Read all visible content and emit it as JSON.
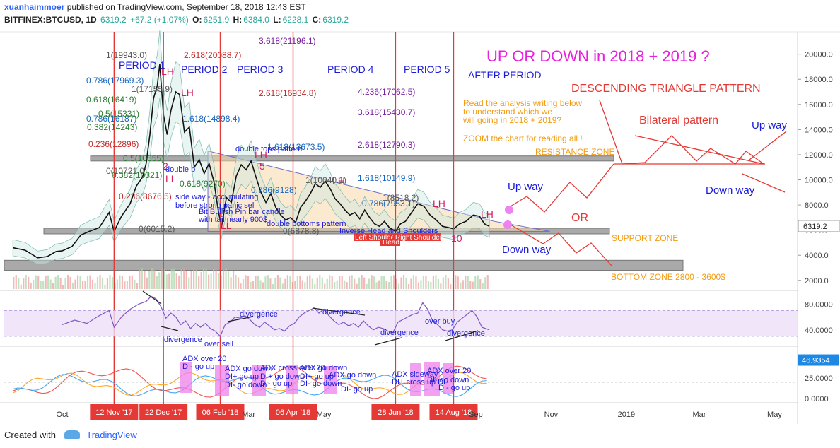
{
  "header": {
    "author": "xuanhaimmoer",
    "published": "published on TradingView.com, September 18, 2018 12:43 EST",
    "symbol": "BITFINEX:BTCUSD, 1D",
    "last": "6319.2",
    "change": "+67.2 (+1.07%)",
    "o_label": "O:",
    "o_value": "6251.9",
    "h_label": "H:",
    "h_value": "6384.0",
    "l_label": "L:",
    "l_value": "6228.1",
    "c_label": "C:",
    "c_value": "6319.2"
  },
  "footer": {
    "created_with": "Created with",
    "brand": "TradingView"
  },
  "chart_data": {
    "type": "line",
    "title": "UP OR DOWN in 2018 + 2019 ?",
    "price_axis": {
      "min": 1200,
      "max": 21500,
      "ticks": [
        2000.0,
        4000.0,
        6000.0,
        8000.0,
        10000.0,
        12000.0,
        14000.0,
        16000.0,
        18000.0,
        20000.0
      ],
      "last_price": "6319.2"
    },
    "time_axis": {
      "labels": [
        {
          "text": "Oct",
          "day": 0
        },
        {
          "text": "Mar",
          "day": 151
        },
        {
          "text": "May",
          "day": 212
        },
        {
          "text": "Sep",
          "day": 335
        },
        {
          "text": "Nov",
          "day": 396
        },
        {
          "text": "2019",
          "day": 457
        },
        {
          "text": "Mar",
          "day": 516
        },
        {
          "text": "May",
          "day": 577
        }
      ],
      "markers": [
        {
          "text": "12 Nov '17",
          "day": 42
        },
        {
          "text": "22 Dec '17",
          "day": 82
        },
        {
          "text": "06 Feb '18",
          "day": 128
        },
        {
          "text": "06 Apr '18",
          "day": 187
        },
        {
          "text": "28 Jun '18",
          "day": 270
        },
        {
          "text": "14 Aug '18",
          "day": 317
        }
      ]
    },
    "price_series": {
      "name": "BTCUSD",
      "points": [
        [
          -40,
          4600
        ],
        [
          -30,
          4400
        ],
        [
          -20,
          3800
        ],
        [
          -12,
          3900
        ],
        [
          -5,
          4300
        ],
        [
          0,
          4350
        ],
        [
          8,
          4700
        ],
        [
          15,
          5600
        ],
        [
          22,
          5900
        ],
        [
          30,
          6200
        ],
        [
          38,
          7400
        ],
        [
          42,
          5900
        ],
        [
          48,
          7100
        ],
        [
          55,
          8100
        ],
        [
          60,
          9500
        ],
        [
          65,
          10200
        ],
        [
          68,
          11300
        ],
        [
          71,
          13600
        ],
        [
          74,
          16500
        ],
        [
          77,
          17500
        ],
        [
          79,
          19200
        ],
        [
          82,
          15200
        ],
        [
          85,
          13600
        ],
        [
          88,
          15500
        ],
        [
          92,
          17000
        ],
        [
          95,
          16800
        ],
        [
          99,
          13800
        ],
        [
          103,
          14200
        ],
        [
          107,
          11000
        ],
        [
          111,
          11600
        ],
        [
          115,
          10500
        ],
        [
          119,
          11300
        ],
        [
          123,
          9800
        ],
        [
          126,
          7800
        ],
        [
          129,
          6200
        ],
        [
          133,
          8600
        ],
        [
          137,
          8200
        ],
        [
          141,
          10300
        ],
        [
          145,
          11200
        ],
        [
          149,
          10800
        ],
        [
          153,
          11500
        ],
        [
          157,
          10200
        ],
        [
          161,
          9000
        ],
        [
          165,
          8200
        ],
        [
          169,
          8900
        ],
        [
          173,
          7800
        ],
        [
          177,
          7200
        ],
        [
          181,
          6800
        ],
        [
          185,
          7000
        ],
        [
          189,
          6600
        ],
        [
          193,
          7800
        ],
        [
          197,
          8300
        ],
        [
          201,
          8900
        ],
        [
          205,
          9700
        ],
        [
          209,
          9400
        ],
        [
          213,
          9900
        ],
        [
          217,
          9300
        ],
        [
          221,
          8500
        ],
        [
          225,
          8100
        ],
        [
          229,
          7600
        ],
        [
          233,
          7200
        ],
        [
          237,
          7400
        ],
        [
          241,
          6900
        ],
        [
          245,
          7600
        ],
        [
          249,
          7000
        ],
        [
          253,
          6500
        ],
        [
          257,
          6300
        ],
        [
          261,
          6700
        ],
        [
          265,
          6200
        ],
        [
          270,
          5900
        ],
        [
          274,
          6500
        ],
        [
          278,
          6700
        ],
        [
          283,
          7400
        ],
        [
          288,
          8100
        ],
        [
          293,
          7900
        ],
        [
          298,
          7200
        ],
        [
          303,
          6800
        ],
        [
          308,
          6300
        ],
        [
          313,
          6200
        ],
        [
          317,
          6100
        ],
        [
          322,
          6500
        ],
        [
          327,
          6700
        ],
        [
          333,
          7200
        ],
        [
          338,
          7100
        ],
        [
          342,
          6500
        ],
        [
          346,
          6300
        ]
      ]
    },
    "annotations": {
      "title_text": "UP OR DOWN in 2018 + 2019 ?",
      "after_period": "AFTER PERIOD",
      "periods": [
        "PERIOD 1",
        "PERIOD 2",
        "PERIOD 3",
        "PERIOD 4",
        "PERIOD 5"
      ],
      "pattern": "DESCENDING TRIANGLE PATTERN",
      "bilateral": "Bilateral pattern",
      "note_lines": [
        "Read the analysis writing below",
        "to understand which we",
        "will going in 2018 + 2019?",
        "ZOOM the chart for reading all !"
      ],
      "resistance": "RESISTANCE ZONE",
      "support": "SUPPORT ZONE",
      "bottom": "BOTTOM ZONE 2800 - 3600$",
      "up_way": "Up way",
      "down_way": "Down way",
      "or": "OR",
      "up_way_right": "Up way",
      "down_way_right": "Down way",
      "lh": "LH",
      "ll": "LL",
      "num_2": "2",
      "num_5": "5",
      "num_10": "10",
      "double_tops": "double tops pattern",
      "double_bottoms": "double bottoms pattern",
      "double_b2": "double b",
      "inverse_hs": "Inverse Head and Shoulders",
      "left_shoulder": "Left Shoulder",
      "right_shoulder": "Right Shoulder",
      "head": "Head",
      "sideway_text": "side way - accumulating",
      "panic_text": "before strong panic sell",
      "pin_text": "Bit Bullish Pin bar candle",
      "tail_text": "with tail nearly 900$",
      "fib_red": [
        "2.618(20088.7)",
        "2.618(16934.8)",
        "0.236(8676.5)",
        "0.236(12896)"
      ],
      "fib_purple": [
        "3.618(21196.1)",
        "4.236(17062.5)",
        "3.618(15430.7)",
        "2.618(12790.3)"
      ],
      "fib_blue": [
        "1.618(14898.4)",
        "1.618(13673.5)",
        "1.618(10149.9)",
        "0.786(17969.3)",
        "0.786(16187)",
        "0.786(7953.1)",
        "0.786(9128)"
      ],
      "fib_green": [
        "0.618(16419)",
        "0.5(15331)",
        "0.382(14243)",
        "0.5(10655)",
        "0.382(10321)",
        "0.618(9270)"
      ],
      "fib_gray": [
        "1(19943.0)",
        "1(17155.9)",
        "0(10721.0)",
        "0(6015.2)",
        "0(5878.8)",
        "1(8518.2)",
        "1(10040.1)"
      ]
    },
    "rsi": {
      "name": "RSI",
      "ticks": [
        40.0,
        80.0
      ],
      "ylim": [
        20,
        100
      ],
      "values": [
        [
          0,
          48
        ],
        [
          10,
          55
        ],
        [
          20,
          50
        ],
        [
          30,
          62
        ],
        [
          38,
          70
        ],
        [
          42,
          44
        ],
        [
          48,
          60
        ],
        [
          55,
          72
        ],
        [
          62,
          80
        ],
        [
          68,
          84
        ],
        [
          72,
          92
        ],
        [
          76,
          88
        ],
        [
          80,
          76
        ],
        [
          84,
          58
        ],
        [
          88,
          66
        ],
        [
          92,
          60
        ],
        [
          96,
          48
        ],
        [
          100,
          54
        ],
        [
          104,
          42
        ],
        [
          108,
          50
        ],
        [
          112,
          44
        ],
        [
          116,
          50
        ],
        [
          120,
          42
        ],
        [
          124,
          38
        ],
        [
          128,
          30
        ],
        [
          132,
          48
        ],
        [
          136,
          52
        ],
        [
          140,
          60
        ],
        [
          144,
          58
        ],
        [
          148,
          62
        ],
        [
          152,
          56
        ],
        [
          156,
          48
        ],
        [
          160,
          44
        ],
        [
          164,
          52
        ],
        [
          168,
          46
        ],
        [
          172,
          40
        ],
        [
          176,
          42
        ],
        [
          180,
          38
        ],
        [
          184,
          46
        ],
        [
          188,
          50
        ],
        [
          192,
          60
        ],
        [
          196,
          66
        ],
        [
          200,
          70
        ],
        [
          204,
          74
        ],
        [
          208,
          66
        ],
        [
          212,
          72
        ],
        [
          216,
          62
        ],
        [
          220,
          54
        ],
        [
          224,
          48
        ],
        [
          228,
          52
        ],
        [
          232,
          46
        ],
        [
          236,
          50
        ],
        [
          240,
          44
        ],
        [
          244,
          54
        ],
        [
          248,
          46
        ],
        [
          252,
          40
        ],
        [
          256,
          44
        ],
        [
          260,
          42
        ],
        [
          264,
          38
        ],
        [
          268,
          36
        ],
        [
          272,
          52
        ],
        [
          276,
          56
        ],
        [
          280,
          60
        ],
        [
          284,
          64
        ],
        [
          288,
          66
        ],
        [
          292,
          82
        ],
        [
          296,
          72
        ],
        [
          300,
          54
        ],
        [
          304,
          48
        ],
        [
          308,
          40
        ],
        [
          312,
          38
        ],
        [
          316,
          40
        ],
        [
          320,
          52
        ],
        [
          324,
          58
        ],
        [
          328,
          64
        ],
        [
          332,
          70
        ],
        [
          336,
          60
        ],
        [
          340,
          44
        ],
        [
          346,
          40
        ]
      ],
      "labels": {
        "divergence": "divergence",
        "over_sell": "over sell",
        "over_buy": "over buy"
      }
    },
    "adx": {
      "name": "ADX",
      "ticks": [
        0.0,
        25.0
      ],
      "last_value": "46.9354",
      "ylim": [
        -5,
        62
      ],
      "labels": [
        "ADX over 20",
        "DI- go up",
        "ADX go down",
        "DI+ go up",
        "DI- go down",
        "ADX cross over 20",
        "DI+ go down",
        "DI- go up",
        "ADX go down",
        "DI+ go up",
        "DI- go down",
        "ADX go down",
        "DI- go up",
        "ADX sideway",
        "DI+ cross up DI-",
        "ADX over 20",
        "DI- go down",
        "DI- go up"
      ]
    }
  }
}
